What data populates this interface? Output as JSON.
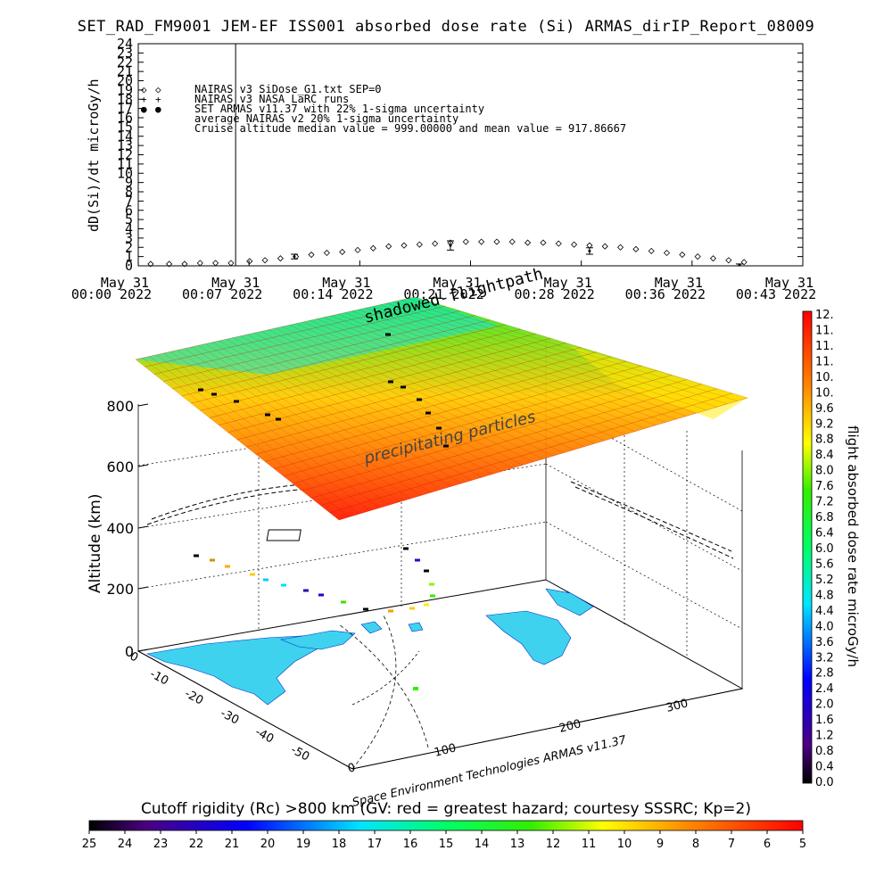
{
  "title": "SET_RAD_FM9001  JEM-EF ISS001 absorbed dose rate (Si) ARMAS_dirIP_Report_08009",
  "chart_data": [
    {
      "type": "scatter",
      "ylabel": "dD(Si)/dt microGy/h",
      "ylim": [
        0,
        24
      ],
      "y_ticks": [
        "0",
        "1",
        "2",
        "3",
        "4",
        "5",
        "6",
        "7",
        "8",
        "9",
        "10",
        "11",
        "12",
        "13",
        "14",
        "15",
        "16",
        "17",
        "18",
        "19",
        "20",
        "21",
        "22",
        "23",
        "24"
      ],
      "x_ticks": [
        {
          "date": "May 31",
          "time": "00:00 2022"
        },
        {
          "date": "May 31",
          "time": "00:07 2022"
        },
        {
          "date": "May 31",
          "time": "00:14 2022"
        },
        {
          "date": "May 31",
          "time": "00:21 2022"
        },
        {
          "date": "May 31",
          "time": "00:28 2022"
        },
        {
          "date": "May 31",
          "time": "00:36 2022"
        },
        {
          "date": "May 31",
          "time": "00:43 2022"
        }
      ],
      "xlim_minutes": [
        0,
        43
      ],
      "marker_line_minute": 6.3,
      "legend": [
        {
          "symbol": "◇",
          "color": "#000000",
          "text": "NAIRAS v3 SiDose_G1.txt SEP=0"
        },
        {
          "symbol": "+",
          "color": "#000000",
          "text": "NAIRAS v3 NASA LaRC runs"
        },
        {
          "symbol": "●",
          "color": "#0033ff",
          "text": "SET ARMAS v11.37 with 22% 1-sigma uncertainty"
        },
        {
          "symbol": "",
          "color": "#000000",
          "text": "average NAIRAS v2 20% 1-sigma uncertainty"
        },
        {
          "symbol": "",
          "color": "#000000",
          "text": "Cruise altitude median value = 999.00000 and mean value = 917.86667"
        }
      ],
      "series": [
        {
          "x_minutes": [
            0.8,
            2,
            3,
            4,
            5,
            6,
            7.2,
            8.2,
            9.2,
            10.2,
            11.2,
            12.2,
            13.2,
            14.2,
            15.2,
            16.2,
            17.2,
            18.2,
            19.2,
            20.2,
            21.2,
            22.2,
            23.2,
            24.2,
            25.2,
            26.2,
            27.2,
            28.2,
            29.2,
            30.2,
            31.2,
            32.2,
            33.2,
            34.2,
            35.2,
            36.2,
            37.2,
            38.2,
            39.2
          ],
          "values": [
            0.2,
            0.2,
            0.2,
            0.3,
            0.3,
            0.3,
            0.5,
            0.6,
            0.8,
            1.0,
            1.2,
            1.4,
            1.5,
            1.7,
            1.9,
            2.1,
            2.2,
            2.3,
            2.4,
            2.5,
            2.6,
            2.6,
            2.6,
            2.6,
            2.5,
            2.5,
            2.4,
            2.3,
            2.2,
            2.1,
            2.0,
            1.8,
            1.6,
            1.4,
            1.2,
            1.0,
            0.8,
            0.6,
            0.4
          ]
        }
      ],
      "error_bars": [
        {
          "x_minute": 10.1,
          "value": 1.0,
          "err": 0.25
        },
        {
          "x_minute": 20.2,
          "value": 2.2,
          "err": 0.5
        },
        {
          "x_minute": 29.2,
          "value": 1.6,
          "err": 0.35
        },
        {
          "x_minute": 38.9,
          "value": 0.1,
          "err": 0.1
        }
      ]
    }
  ],
  "globe": {
    "annotations": [
      "shadowed-flightpath",
      "precipitating particles"
    ],
    "altitude_label": "Altitude (km)",
    "altitude_ticks": [
      "0",
      "200",
      "400",
      "600",
      "800"
    ],
    "lat_ticks": [
      "0",
      "-10",
      "-20",
      "-30",
      "-40",
      "-50"
    ],
    "lon_ticks": [
      "0",
      "100",
      "200",
      "300"
    ],
    "credit": "Space Environment Technologies ARMAS v11.37",
    "colorbar_label": "flight absorbed dose rate microGy/h",
    "colorbar_ticks": [
      "0.0",
      "0.4",
      "0.8",
      "1.2",
      "1.6",
      "2.0",
      "2.4",
      "2.8",
      "3.2",
      "3.6",
      "4.0",
      "4.4",
      "4.8",
      "5.2",
      "5.6",
      "6.0",
      "6.4",
      "6.8",
      "7.2",
      "7.6",
      "8.0",
      "8.4",
      "8.8",
      "9.2",
      "9.6",
      "10.",
      "10.",
      "11.",
      "11.",
      "11.",
      "12."
    ],
    "cutoff_label": "Cutoff rigidity (Rc) >800 km (GV: red = greatest hazard; courtesy SSSRC; Kp=2)",
    "cutoff_ticks": [
      "25",
      "24",
      "23",
      "22",
      "21",
      "20",
      "19",
      "18",
      "17",
      "16",
      "15",
      "14",
      "13",
      "12",
      "11",
      "10",
      "9",
      "8",
      "7",
      "6",
      "5"
    ]
  },
  "colors": {
    "cold": "#00e5ff",
    "mid": "#33ee22",
    "warm": "#ffee00",
    "hot": "#ff1a00",
    "land": "#3fd2ee",
    "armas_point": "#0033ff"
  }
}
